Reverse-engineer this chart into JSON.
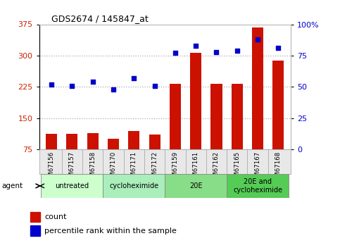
{
  "title": "GDS2674 / 145847_at",
  "samples": [
    "GSM67156",
    "GSM67157",
    "GSM67158",
    "GSM67170",
    "GSM67171",
    "GSM67172",
    "GSM67159",
    "GSM67161",
    "GSM67162",
    "GSM67165",
    "GSM67167",
    "GSM67168"
  ],
  "counts": [
    113,
    112,
    114,
    100,
    120,
    110,
    232,
    307,
    232,
    233,
    367,
    288
  ],
  "percentiles": [
    52,
    51,
    54,
    48,
    57,
    51,
    77,
    83,
    78,
    79,
    88,
    81
  ],
  "ylim_left": [
    75,
    375
  ],
  "ylim_right": [
    0,
    100
  ],
  "yticks_left": [
    75,
    150,
    225,
    300,
    375
  ],
  "yticks_right": [
    0,
    25,
    50,
    75,
    100
  ],
  "ytick_labels_right": [
    "0",
    "25",
    "50",
    "75",
    "100%"
  ],
  "bar_color": "#cc1100",
  "dot_color": "#0000cc",
  "grid_color": "#aaaaaa",
  "bar_width": 0.55,
  "groups": [
    {
      "label": "untreated",
      "start": 0,
      "end": 3
    },
    {
      "label": "cycloheximide",
      "start": 3,
      "end": 6
    },
    {
      "label": "20E",
      "start": 6,
      "end": 9
    },
    {
      "label": "20E and\ncycloheximide",
      "start": 9,
      "end": 12
    }
  ],
  "group_colors": [
    "#ccffcc",
    "#aaeebb",
    "#88dd88",
    "#55cc55"
  ],
  "legend_count_label": "count",
  "legend_pct_label": "percentile rank within the sample",
  "tick_label_color_left": "#cc2200",
  "tick_label_color_right": "#0000cc"
}
